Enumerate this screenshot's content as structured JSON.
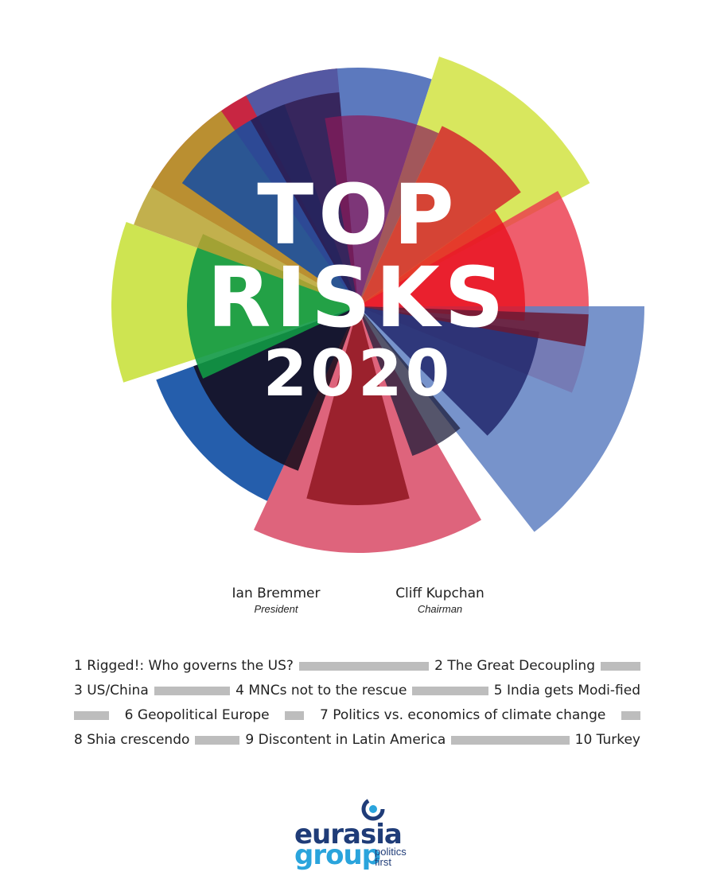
{
  "title": {
    "line1": "TOP",
    "line2": "RISKS",
    "year": "2020"
  },
  "authors": [
    {
      "name": "Ian Bremmer",
      "role": "President"
    },
    {
      "name": "Cliff Kupchan",
      "role": "Chairman"
    }
  ],
  "risks": [
    "1 Rigged!: Who governs the US?",
    "2 The Great Decoupling",
    "3 US/China",
    "4 MNCs not to the rescue",
    "5 India gets Modi-fied",
    "6 Geopolitical Europe",
    "7 Politics vs. economics of climate change",
    "8 Shia crescendo",
    "9 Discontent in Latin America",
    "10 Turkey"
  ],
  "logo": {
    "word1": "eurasia",
    "word2": "group",
    "tagline1": "politics",
    "tagline2": "first"
  },
  "colors": {
    "separator": "#bdbdbd",
    "logo_dark": "#1f3c78",
    "logo_light": "#2aa4dc"
  }
}
